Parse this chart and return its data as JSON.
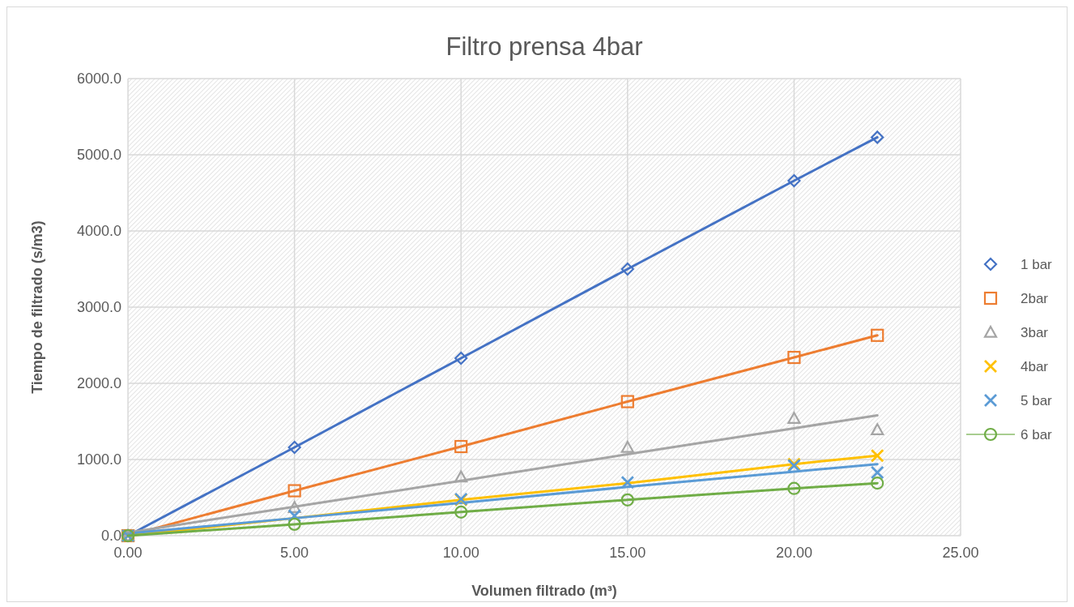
{
  "chart_data": {
    "type": "scatter",
    "title": "Filtro prensa 4bar",
    "xlabel": "Volumen filtrado (m³)",
    "ylabel": "Tiempo de filtrado (s/m3)",
    "x": [
      0,
      5,
      10,
      15,
      20,
      22.5
    ],
    "series": [
      {
        "name": "1 bar",
        "color": "#4472c4",
        "marker": "diamond",
        "values": [
          0,
          1160,
          2330,
          3500,
          4660,
          5230
        ]
      },
      {
        "name": "2bar",
        "color": "#ed7d31",
        "marker": "square",
        "values": [
          0,
          590,
          1170,
          1760,
          2340,
          2630
        ]
      },
      {
        "name": "3bar",
        "color": "#a5a5a5",
        "marker": "triangle",
        "values": [
          0,
          370,
          770,
          1160,
          1540,
          1390
        ]
      },
      {
        "name": "4bar",
        "color": "#ffc000",
        "marker": "cross",
        "values": [
          0,
          null,
          470,
          null,
          940,
          1050
        ]
      },
      {
        "name": "5 bar",
        "color": "#5b9bd5",
        "marker": "cross",
        "values": [
          0,
          260,
          480,
          700,
          920,
          830
        ]
      },
      {
        "name": "6 bar",
        "type": "line",
        "color": "#70ad47",
        "marker": "circle",
        "values": [
          0,
          150,
          310,
          470,
          620,
          690
        ]
      },
      {
        "type": "line",
        "color": "#4472c4",
        "marker": "none",
        "values": [
          0,
          1160,
          2330,
          3500,
          4660,
          5230
        ]
      },
      {
        "type": "line",
        "color": "#ed7d31",
        "marker": "none",
        "values": [
          0,
          590,
          1170,
          1760,
          2340,
          2630
        ]
      },
      {
        "type": "line",
        "color": "#a5a5a5",
        "marker": "none",
        "values": [
          40,
          380,
          720,
          1070,
          1410,
          1580
        ]
      },
      {
        "type": "line",
        "color": "#ffc000",
        "marker": "none",
        "values": [
          0,
          230,
          470,
          690,
          940,
          1050
        ]
      },
      {
        "type": "line",
        "color": "#5b9bd5",
        "marker": "none",
        "values": [
          30,
          230,
          430,
          640,
          840,
          940
        ]
      }
    ],
    "xlim": [
      0,
      25
    ],
    "xticks": [
      {
        "value": 0,
        "label": "0.00"
      },
      {
        "value": 5,
        "label": "5.00"
      },
      {
        "value": 10,
        "label": "10.00"
      },
      {
        "value": 15,
        "label": "15.00"
      },
      {
        "value": 20,
        "label": "20.00"
      },
      {
        "value": 25,
        "label": "25.00"
      }
    ],
    "ylim": [
      0,
      6000
    ],
    "yticks": [
      {
        "value": 0,
        "label": "0.0"
      },
      {
        "value": 1000,
        "label": "1000.0"
      },
      {
        "value": 2000,
        "label": "2000.0"
      },
      {
        "value": 3000,
        "label": "3000.0"
      },
      {
        "value": 4000,
        "label": "4000.0"
      },
      {
        "value": 5000,
        "label": "5000.0"
      },
      {
        "value": 6000,
        "label": "6000.0"
      }
    ],
    "grid": true,
    "legend": "right"
  }
}
